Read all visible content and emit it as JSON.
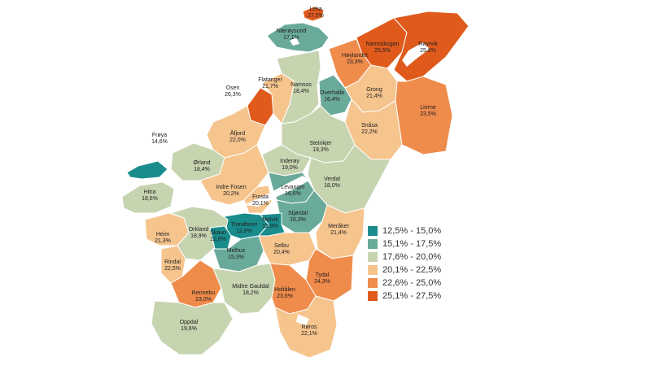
{
  "colors": {
    "band1": "#1a8c8c",
    "band2": "#6aaa9a",
    "band3": "#c7d4b0",
    "band4": "#f6c48d",
    "band5": "#ef8b4b",
    "band6": "#e05a1c",
    "water": "#ffffff"
  },
  "legend": [
    {
      "label": "12,5% - 15,0%",
      "color": "#1a8c8c"
    },
    {
      "label": "15,1% - 17,5%",
      "color": "#6aaa9a"
    },
    {
      "label": "17,6% - 20,0%",
      "color": "#c7d4b0"
    },
    {
      "label": "20,1% - 22,5%",
      "color": "#f6c48d"
    },
    {
      "label": "22,6% - 25,0%",
      "color": "#ef8b4b"
    },
    {
      "label": "25,1% - 27,5%",
      "color": "#e05a1c"
    }
  ],
  "municipalities": [
    {
      "id": "leka",
      "name": "Leka",
      "value": "27,5%",
      "band": 6
    },
    {
      "id": "naeroysund",
      "name": "Nærøysund",
      "value": "17,1%",
      "band": 2
    },
    {
      "id": "namsskogan",
      "name": "Namsskogan",
      "value": "25,5%",
      "band": 6
    },
    {
      "id": "royrvik",
      "name": "Røyrvik",
      "value": "25,6%",
      "band": 6
    },
    {
      "id": "hoylandet",
      "name": "Høylandet",
      "value": "23,3%",
      "band": 5
    },
    {
      "id": "osen",
      "name": "Osen",
      "value": "26,3%",
      "band": 6
    },
    {
      "id": "flatanger",
      "name": "Flatanger",
      "value": "21,7%",
      "band": 4
    },
    {
      "id": "namsos",
      "name": "Namsos",
      "value": "18,4%",
      "band": 3
    },
    {
      "id": "overhalla",
      "name": "Overhalla",
      "value": "16,4%",
      "band": 2
    },
    {
      "id": "grong",
      "name": "Grong",
      "value": "21,4%",
      "band": 4
    },
    {
      "id": "lierne",
      "name": "Lierne",
      "value": "23,5%",
      "band": 5
    },
    {
      "id": "snasa",
      "name": "Snåsa",
      "value": "22,2%",
      "band": 4
    },
    {
      "id": "froya",
      "name": "Frøya",
      "value": "14,6%",
      "band": 1
    },
    {
      "id": "afjord",
      "name": "Åfjord",
      "value": "22,0%",
      "band": 4
    },
    {
      "id": "steinkjer",
      "name": "Steinkjer",
      "value": "19,3%",
      "band": 3
    },
    {
      "id": "orland",
      "name": "Ørland",
      "value": "18,4%",
      "band": 3
    },
    {
      "id": "inderoy",
      "name": "Inderøy",
      "value": "19,0%",
      "band": 3
    },
    {
      "id": "verdal",
      "name": "Verdal",
      "value": "18,0%",
      "band": 3
    },
    {
      "id": "hitra",
      "name": "Hitra",
      "value": "18,6%",
      "band": 3
    },
    {
      "id": "indre_fosen",
      "name": "Indre Fosen",
      "value": "20,2%",
      "band": 4
    },
    {
      "id": "frosta",
      "name": "Frosta",
      "value": "20,1%",
      "band": 4
    },
    {
      "id": "levanger",
      "name": "Levanger",
      "value": "16,6%",
      "band": 2
    },
    {
      "id": "stjordal",
      "name": "Stjørdal",
      "value": "16,3%",
      "band": 2
    },
    {
      "id": "trondheim",
      "name": "Trondheim",
      "value": "12,8%",
      "band": 1
    },
    {
      "id": "malvik",
      "name": "Malvik",
      "value": "12,9%",
      "band": 1
    },
    {
      "id": "heim",
      "name": "Heim",
      "value": "21,3%",
      "band": 4
    },
    {
      "id": "orkland",
      "name": "Orkland",
      "value": "18,9%",
      "band": 3
    },
    {
      "id": "skaun",
      "name": "Skaun",
      "value": "12,8%",
      "band": 1
    },
    {
      "id": "meraker",
      "name": "Meråker",
      "value": "21,4%",
      "band": 4
    },
    {
      "id": "melhus",
      "name": "Melhus",
      "value": "15,3%",
      "band": 2
    },
    {
      "id": "selbu",
      "name": "Selbu",
      "value": "20,4%",
      "band": 4
    },
    {
      "id": "rindal",
      "name": "Rindal",
      "value": "22,5%",
      "band": 4
    },
    {
      "id": "tydal",
      "name": "Tydal",
      "value": "24,3%",
      "band": 5
    },
    {
      "id": "rennebu",
      "name": "Rennebu",
      "value": "23,0%",
      "band": 5
    },
    {
      "id": "midtre_gauldal",
      "name": "Midtre Gauldal",
      "value": "18,2%",
      "band": 3
    },
    {
      "id": "holtalen",
      "name": "Holtålen",
      "value": "23,6%",
      "band": 5
    },
    {
      "id": "oppdal",
      "name": "Oppdal",
      "value": "19,6%",
      "band": 3
    },
    {
      "id": "roros",
      "name": "Røros",
      "value": "22,1%",
      "band": 4
    }
  ]
}
